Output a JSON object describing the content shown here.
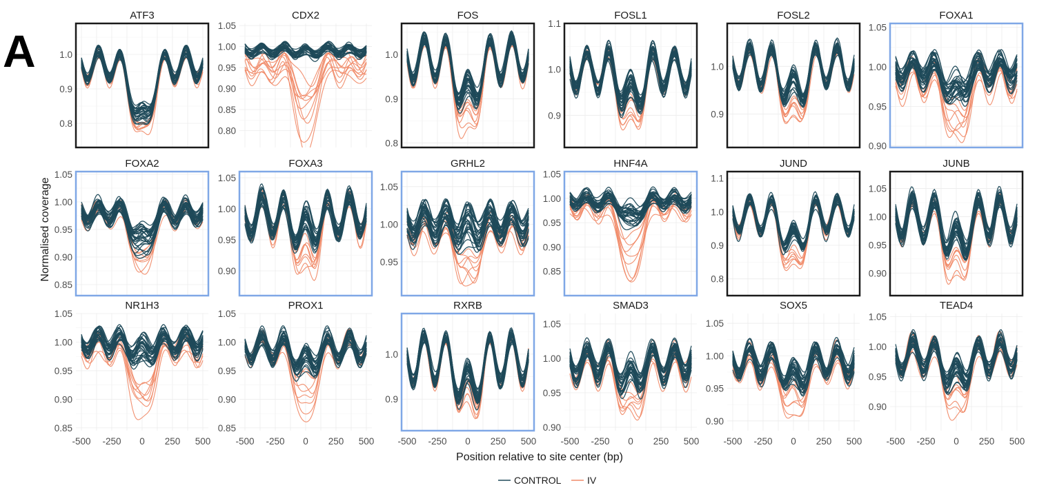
{
  "figure": {
    "panel_letter": "A",
    "ylabel": "Normalised coverage",
    "xlabel": "Position relative to site center (bp)"
  },
  "legend": [
    {
      "label": "CONTROL",
      "color": "#1f4a5a"
    },
    {
      "label": "IV",
      "color": "#f08a68"
    }
  ],
  "colors": {
    "control": "#1f4a5a",
    "iv": "#f08a68",
    "frame_black": "#1a1a1a",
    "frame_blue": "#7fa7e6",
    "grid": "#ececec"
  },
  "chart_data": [
    {
      "type": "line",
      "title": "ATF3",
      "xlim": [
        -500,
        500
      ],
      "ylim": [
        0.73,
        1.09
      ],
      "y_ticks": [
        0.8,
        0.9,
        1.0
      ],
      "y_tick_labels": [
        "0.8",
        "0.9",
        "1.0"
      ],
      "show_x_ticks": false,
      "frame": "black",
      "control": {
        "baseline": 0.97,
        "wave_amp": 0.04,
        "center_dip": 0.16,
        "center_dip_max": 0.2,
        "count": 28,
        "spread": 0.012
      },
      "iv": {
        "baseline": 0.965,
        "wave_amp": 0.04,
        "center_dip": 0.2,
        "center_dip_max": 0.23,
        "count": 8,
        "spread": 0.012
      }
    },
    {
      "type": "line",
      "title": "CDX2",
      "xlim": [
        -500,
        500
      ],
      "ylim": [
        0.76,
        1.055
      ],
      "y_ticks": [
        0.8,
        0.85,
        0.9,
        0.95,
        1.0,
        1.05
      ],
      "y_tick_labels": [
        "0.80",
        "0.85",
        "0.90",
        "0.95",
        "1.00",
        "1.05"
      ],
      "show_x_ticks": false,
      "frame": "none",
      "control": {
        "baseline": 0.99,
        "wave_amp": 0.01,
        "center_dip": 0.0,
        "center_dip_max": 0.01,
        "count": 28,
        "spread": 0.008
      },
      "iv": {
        "baseline": 0.955,
        "wave_amp": 0.012,
        "center_dip": 0.06,
        "center_dip_max": 0.19,
        "count": 10,
        "spread": 0.025
      }
    },
    {
      "type": "line",
      "title": "FOS",
      "xlim": [
        -500,
        500
      ],
      "ylim": [
        0.79,
        1.07
      ],
      "y_ticks": [
        0.8,
        0.9,
        1.0
      ],
      "y_tick_labels": [
        "0.8",
        "0.9",
        "1.0"
      ],
      "show_x_ticks": false,
      "frame": "black",
      "control": {
        "baseline": 0.99,
        "wave_amp": 0.045,
        "center_dip": 0.08,
        "center_dip_max": 0.12,
        "count": 28,
        "spread": 0.01
      },
      "iv": {
        "baseline": 0.985,
        "wave_amp": 0.045,
        "center_dip": 0.13,
        "center_dip_max": 0.19,
        "count": 8,
        "spread": 0.01
      }
    },
    {
      "type": "line",
      "title": "FOSL1",
      "xlim": [
        -500,
        500
      ],
      "ylim": [
        0.83,
        1.1
      ],
      "y_ticks": [
        0.9,
        1.0,
        1.1
      ],
      "y_tick_labels": [
        "0.9",
        "1.0",
        "1.1"
      ],
      "show_x_ticks": false,
      "frame": "black",
      "control": {
        "baseline": 1.0,
        "wave_amp": 0.04,
        "center_dip": 0.05,
        "center_dip_max": 0.09,
        "count": 28,
        "spread": 0.012
      },
      "iv": {
        "baseline": 0.995,
        "wave_amp": 0.04,
        "center_dip": 0.1,
        "center_dip_max": 0.15,
        "count": 8,
        "spread": 0.01
      }
    },
    {
      "type": "line",
      "title": "FOSL2",
      "xlim": [
        -500,
        500
      ],
      "ylim": [
        0.83,
        1.09
      ],
      "y_ticks": [
        0.9,
        1.0
      ],
      "y_tick_labels": [
        "0.9",
        "1.0"
      ],
      "show_x_ticks": false,
      "frame": "black",
      "control": {
        "baseline": 1.0,
        "wave_amp": 0.04,
        "center_dip": 0.05,
        "center_dip_max": 0.08,
        "count": 28,
        "spread": 0.01
      },
      "iv": {
        "baseline": 0.995,
        "wave_amp": 0.04,
        "center_dip": 0.1,
        "center_dip_max": 0.14,
        "count": 8,
        "spread": 0.01
      }
    },
    {
      "type": "line",
      "title": "FOXA1",
      "xlim": [
        -500,
        500
      ],
      "ylim": [
        0.898,
        1.055
      ],
      "y_ticks": [
        0.9,
        0.95,
        1.0,
        1.05
      ],
      "y_tick_labels": [
        "0.90",
        "0.95",
        "1.00",
        "1.05"
      ],
      "show_x_ticks": false,
      "frame": "blue",
      "control": {
        "baseline": 0.995,
        "wave_amp": 0.012,
        "center_dip": 0.02,
        "center_dip_max": 0.05,
        "count": 28,
        "spread": 0.01
      },
      "iv": {
        "baseline": 0.985,
        "wave_amp": 0.014,
        "center_dip": 0.05,
        "center_dip_max": 0.09,
        "count": 8,
        "spread": 0.012
      }
    },
    {
      "type": "line",
      "title": "FOXA2",
      "xlim": [
        -500,
        500
      ],
      "ylim": [
        0.83,
        1.055
      ],
      "y_ticks": [
        0.85,
        0.9,
        0.95,
        1.0,
        1.05
      ],
      "y_tick_labels": [
        "0.85",
        "0.90",
        "0.95",
        "1.00",
        "1.05"
      ],
      "show_x_ticks": false,
      "frame": "blue",
      "control": {
        "baseline": 0.98,
        "wave_amp": 0.015,
        "center_dip": 0.04,
        "center_dip_max": 0.08,
        "count": 28,
        "spread": 0.01
      },
      "iv": {
        "baseline": 0.975,
        "wave_amp": 0.015,
        "center_dip": 0.08,
        "center_dip_max": 0.13,
        "count": 8,
        "spread": 0.01
      }
    },
    {
      "type": "line",
      "title": "FOXA3",
      "xlim": [
        -500,
        500
      ],
      "ylim": [
        0.86,
        1.06
      ],
      "y_ticks": [
        0.9,
        0.95,
        1.0,
        1.05
      ],
      "y_tick_labels": [
        "0.90",
        "0.95",
        "1.00",
        "1.05"
      ],
      "show_x_ticks": false,
      "frame": "blue",
      "control": {
        "baseline": 0.99,
        "wave_amp": 0.03,
        "center_dip": 0.02,
        "center_dip_max": 0.05,
        "count": 28,
        "spread": 0.01
      },
      "iv": {
        "baseline": 0.985,
        "wave_amp": 0.03,
        "center_dip": 0.07,
        "center_dip_max": 0.11,
        "count": 8,
        "spread": 0.01
      }
    },
    {
      "type": "line",
      "title": "GRHL2",
      "xlim": [
        -500,
        500
      ],
      "ylim": [
        0.905,
        1.07
      ],
      "y_ticks": [
        0.95,
        1.0,
        1.05
      ],
      "y_tick_labels": [
        "0.95",
        "1.00",
        "1.05"
      ],
      "show_x_ticks": false,
      "frame": "blue",
      "control": {
        "baseline": 1.0,
        "wave_amp": 0.015,
        "center_dip": 0.0,
        "center_dip_max": 0.03,
        "count": 28,
        "spread": 0.012
      },
      "iv": {
        "baseline": 0.99,
        "wave_amp": 0.015,
        "center_dip": 0.04,
        "center_dip_max": 0.08,
        "count": 8,
        "spread": 0.012
      }
    },
    {
      "type": "line",
      "title": "HNF4A",
      "xlim": [
        -500,
        500
      ],
      "ylim": [
        0.8,
        1.055
      ],
      "y_ticks": [
        0.85,
        0.9,
        0.95,
        1.0,
        1.05
      ],
      "y_tick_labels": [
        "0.85",
        "0.90",
        "0.95",
        "1.00",
        "1.05"
      ],
      "show_x_ticks": false,
      "frame": "blue",
      "control": {
        "baseline": 0.995,
        "wave_amp": 0.01,
        "center_dip": 0.02,
        "center_dip_max": 0.06,
        "count": 28,
        "spread": 0.01
      },
      "iv": {
        "baseline": 0.985,
        "wave_amp": 0.012,
        "center_dip": 0.08,
        "center_dip_max": 0.18,
        "count": 8,
        "spread": 0.015
      }
    },
    {
      "type": "line",
      "title": "JUND",
      "xlim": [
        -500,
        500
      ],
      "ylim": [
        0.75,
        1.12
      ],
      "y_ticks": [
        0.8,
        0.9,
        1.0,
        1.1
      ],
      "y_tick_labels": [
        "0.8",
        "0.9",
        "1.0",
        "1.1"
      ],
      "show_x_ticks": false,
      "frame": "black",
      "control": {
        "baseline": 0.99,
        "wave_amp": 0.05,
        "center_dip": 0.08,
        "center_dip_max": 0.11,
        "count": 28,
        "spread": 0.012
      },
      "iv": {
        "baseline": 0.985,
        "wave_amp": 0.05,
        "center_dip": 0.14,
        "center_dip_max": 0.2,
        "count": 8,
        "spread": 0.012
      }
    },
    {
      "type": "line",
      "title": "JUNB",
      "xlim": [
        -500,
        500
      ],
      "ylim": [
        0.86,
        1.08
      ],
      "y_ticks": [
        0.9,
        0.95,
        1.0,
        1.05
      ],
      "y_tick_labels": [
        "0.90",
        "0.95",
        "1.00",
        "1.05"
      ],
      "show_x_ticks": false,
      "frame": "black",
      "control": {
        "baseline": 1.0,
        "wave_amp": 0.035,
        "center_dip": 0.04,
        "center_dip_max": 0.07,
        "count": 28,
        "spread": 0.01
      },
      "iv": {
        "baseline": 0.995,
        "wave_amp": 0.035,
        "center_dip": 0.08,
        "center_dip_max": 0.13,
        "count": 8,
        "spread": 0.01
      }
    },
    {
      "type": "line",
      "title": "NR1H3",
      "xlim": [
        -500,
        500
      ],
      "ylim": [
        0.845,
        1.05
      ],
      "y_ticks": [
        0.85,
        0.9,
        0.95,
        1.0,
        1.05
      ],
      "y_tick_labels": [
        "0.85",
        "0.90",
        "0.95",
        "1.00",
        "1.05"
      ],
      "show_x_ticks": true,
      "x_ticks": [
        -500,
        -250,
        0,
        250,
        500
      ],
      "x_tick_labels": [
        "-500",
        "-250",
        "0",
        "250",
        "500"
      ],
      "frame": "none",
      "control": {
        "baseline": 1.0,
        "wave_amp": 0.015,
        "center_dip": 0.01,
        "center_dip_max": 0.04,
        "count": 28,
        "spread": 0.01
      },
      "iv": {
        "baseline": 0.985,
        "wave_amp": 0.015,
        "center_dip": 0.07,
        "center_dip_max": 0.14,
        "count": 8,
        "spread": 0.015
      }
    },
    {
      "type": "line",
      "title": "PROX1",
      "xlim": [
        -500,
        500
      ],
      "ylim": [
        0.845,
        1.05
      ],
      "y_ticks": [
        0.85,
        0.9,
        0.95,
        1.0,
        1.05
      ],
      "y_tick_labels": [
        "0.85",
        "0.90",
        "0.95",
        "1.00",
        "1.05"
      ],
      "show_x_ticks": true,
      "x_ticks": [
        -500,
        -250,
        0,
        250,
        500
      ],
      "x_tick_labels": [
        "-500",
        "-250",
        "0",
        "250",
        "500"
      ],
      "frame": "none",
      "control": {
        "baseline": 0.99,
        "wave_amp": 0.02,
        "center_dip": 0.02,
        "center_dip_max": 0.05,
        "count": 28,
        "spread": 0.01
      },
      "iv": {
        "baseline": 0.985,
        "wave_amp": 0.02,
        "center_dip": 0.07,
        "center_dip_max": 0.14,
        "count": 8,
        "spread": 0.012
      }
    },
    {
      "type": "line",
      "title": "RXRB",
      "xlim": [
        -500,
        500
      ],
      "ylim": [
        0.83,
        1.09
      ],
      "y_ticks": [
        0.9,
        1.0
      ],
      "y_tick_labels": [
        "0.9",
        "1.0"
      ],
      "show_x_ticks": true,
      "x_ticks": [
        -500,
        -250,
        0,
        250,
        500
      ],
      "x_tick_labels": [
        "-500",
        "-250",
        "0",
        "250",
        "500"
      ],
      "frame": "blue",
      "control": {
        "baseline": 0.99,
        "wave_amp": 0.05,
        "center_dip": 0.06,
        "center_dip_max": 0.1,
        "count": 28,
        "spread": 0.01
      },
      "iv": {
        "baseline": 0.985,
        "wave_amp": 0.05,
        "center_dip": 0.09,
        "center_dip_max": 0.14,
        "count": 8,
        "spread": 0.01
      }
    },
    {
      "type": "line",
      "title": "SMAD3",
      "xlim": [
        -500,
        500
      ],
      "ylim": [
        0.895,
        1.065
      ],
      "y_ticks": [
        0.9,
        0.95,
        1.0,
        1.05
      ],
      "y_tick_labels": [
        "0.90",
        "0.95",
        "1.00",
        "1.05"
      ],
      "show_x_ticks": true,
      "x_ticks": [
        -500,
        -250,
        0,
        250,
        500
      ],
      "x_tick_labels": [
        "-500",
        "-250",
        "0",
        "250",
        "500"
      ],
      "frame": "none",
      "control": {
        "baseline": 0.995,
        "wave_amp": 0.02,
        "center_dip": 0.02,
        "center_dip_max": 0.04,
        "count": 28,
        "spread": 0.01
      },
      "iv": {
        "baseline": 0.99,
        "wave_amp": 0.02,
        "center_dip": 0.05,
        "center_dip_max": 0.09,
        "count": 8,
        "spread": 0.012
      }
    },
    {
      "type": "line",
      "title": "SOX5",
      "xlim": [
        -500,
        500
      ],
      "ylim": [
        0.885,
        1.065
      ],
      "y_ticks": [
        0.9,
        0.95,
        1.0,
        1.05
      ],
      "y_tick_labels": [
        "0.90",
        "0.95",
        "1.00",
        "1.05"
      ],
      "show_x_ticks": true,
      "x_ticks": [
        -500,
        -250,
        0,
        250,
        500
      ],
      "x_tick_labels": [
        "-500",
        "-250",
        "0",
        "250",
        "500"
      ],
      "frame": "none",
      "control": {
        "baseline": 0.99,
        "wave_amp": 0.02,
        "center_dip": 0.02,
        "center_dip_max": 0.05,
        "count": 28,
        "spread": 0.01
      },
      "iv": {
        "baseline": 0.985,
        "wave_amp": 0.02,
        "center_dip": 0.05,
        "center_dip_max": 0.09,
        "count": 8,
        "spread": 0.012
      }
    },
    {
      "type": "line",
      "title": "TEAD4",
      "xlim": [
        -500,
        500
      ],
      "ylim": [
        0.86,
        1.055
      ],
      "y_ticks": [
        0.9,
        0.95,
        1.0,
        1.05
      ],
      "y_tick_labels": [
        "0.90",
        "0.95",
        "1.00",
        "1.05"
      ],
      "show_x_ticks": true,
      "x_ticks": [
        -500,
        -250,
        0,
        250,
        500
      ],
      "x_tick_labels": [
        "-500",
        "-250",
        "0",
        "250",
        "500"
      ],
      "frame": "none",
      "control": {
        "baseline": 0.985,
        "wave_amp": 0.025,
        "center_dip": 0.03,
        "center_dip_max": 0.06,
        "count": 28,
        "spread": 0.01
      },
      "iv": {
        "baseline": 0.98,
        "wave_amp": 0.025,
        "center_dip": 0.07,
        "center_dip_max": 0.11,
        "count": 8,
        "spread": 0.012
      }
    }
  ]
}
